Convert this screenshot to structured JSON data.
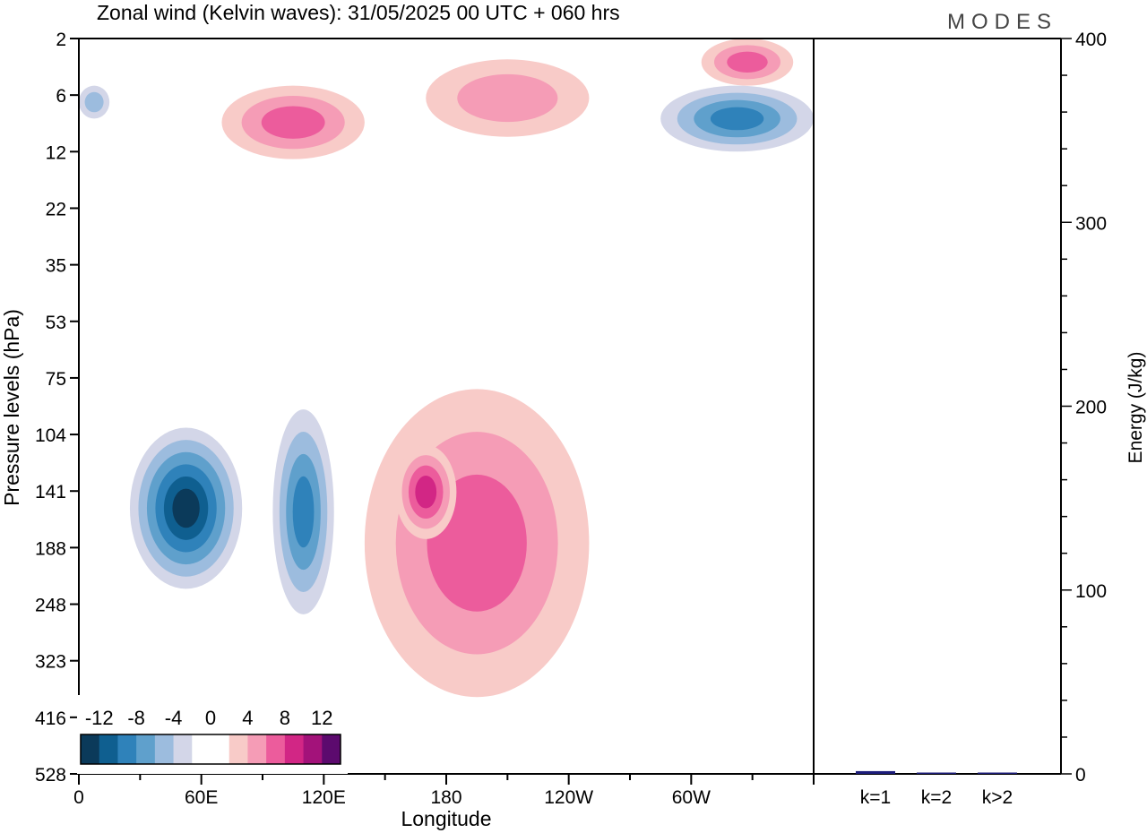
{
  "title": "Zonal wind (Kelvin waves):  31/05/2025  00 UTC  + 060 hrs",
  "logo": "MODES",
  "chart_data": [
    {
      "type": "heatmap",
      "xlabel": "Longitude",
      "ylabel": "Pressure levels (hPa)",
      "x_ticks": [
        "0",
        "60E",
        "120E",
        "180",
        "120W",
        "60W"
      ],
      "y_ticks": [
        "2",
        "6",
        "12",
        "22",
        "35",
        "53",
        "75",
        "104",
        "141",
        "188",
        "248",
        "323",
        "416",
        "528"
      ],
      "colorbar": {
        "labels": [
          "-12",
          "-8",
          "-4",
          "0",
          "4",
          "8",
          "12"
        ],
        "colors": [
          "#0b3a5a",
          "#0f5f90",
          "#2f82ba",
          "#5fa0cc",
          "#9cbcde",
          "#d3d6e8",
          "#ffffff",
          "#ffffff",
          "#f8cbc8",
          "#f59cb6",
          "#ec5c9c",
          "#d22685",
          "#a3127a",
          "#5c0a6e"
        ]
      },
      "features": [
        {
          "name": "upper negative anomaly (west)",
          "lon": [
            0,
            15
          ],
          "level_hPa": [
            5,
            8
          ],
          "value": -4
        },
        {
          "name": "upper positive band",
          "lon": [
            70,
            140
          ],
          "level_hPa": [
            5,
            13
          ],
          "value": 6
        },
        {
          "name": "upper positive band (east)",
          "lon": [
            170,
            250
          ],
          "level_hPa": [
            3,
            10
          ],
          "value": 4
        },
        {
          "name": "upper negative core",
          "lon": [
            285,
            360
          ],
          "level_hPa": [
            5,
            12
          ],
          "value": -10
        },
        {
          "name": "upper positive core",
          "lon": [
            305,
            350
          ],
          "level_hPa": [
            2,
            5
          ],
          "value": 6
        },
        {
          "name": "lower negative core",
          "lon": [
            25,
            80
          ],
          "level_hPa": [
            100,
            230
          ],
          "value": -14
        },
        {
          "name": "lower negative secondary",
          "lon": [
            95,
            125
          ],
          "level_hPa": [
            90,
            260
          ],
          "value": -8
        },
        {
          "name": "lower positive region",
          "lon": [
            140,
            250
          ],
          "level_hPa": [
            80,
            380
          ],
          "value": 6
        },
        {
          "name": "lower positive core",
          "lon": [
            155,
            185
          ],
          "level_hPa": [
            110,
            180
          ],
          "value": 8
        }
      ]
    },
    {
      "type": "bar",
      "ylabel": "Energy (J/kg)",
      "ylim": [
        0,
        400
      ],
      "y_ticks": [
        "0",
        "100",
        "200",
        "300",
        "400"
      ],
      "categories": [
        "k=1",
        "k=2",
        "k>2"
      ],
      "values": [
        1.5,
        0.6,
        0.4
      ],
      "bar_color": "#1c1c7a"
    }
  ],
  "colors": {
    "neg_light": "#d3d6e8",
    "neg_2": "#9cbcde",
    "neg_3": "#5fa0cc",
    "neg_4": "#2f82ba",
    "neg_5": "#0f5f90",
    "neg_6": "#0b3a5a",
    "pos_light": "#f8cbc8",
    "pos_2": "#f59cb6",
    "pos_3": "#ec5c9c",
    "pos_4": "#d22685"
  }
}
